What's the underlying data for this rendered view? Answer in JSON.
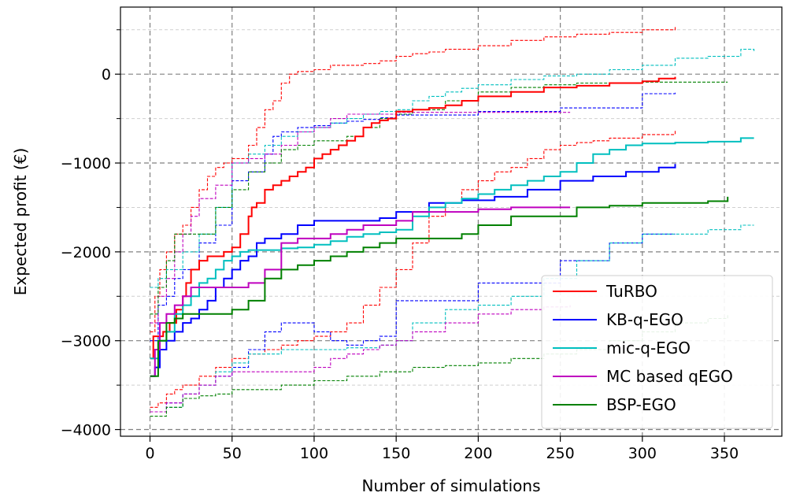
{
  "chart_data": {
    "type": "line",
    "title": "",
    "xlabel": "Number of simulations",
    "ylabel": "Expected profit (€)",
    "xlim": [
      -18,
      385
    ],
    "ylim": [
      -4075,
      755
    ],
    "xticks": [
      0,
      50,
      100,
      150,
      200,
      250,
      300,
      350
    ],
    "yticks": [
      -4000,
      -3000,
      -2000,
      -1000,
      0
    ],
    "ytick_labels": [
      "−4000",
      "−3000",
      "−2000",
      "−1000",
      "0"
    ],
    "grid": true,
    "legend_position": "lower-right",
    "series": [
      {
        "name": "TuRBO",
        "color": "#ff0000",
        "mean": {
          "x": [
            0,
            2,
            5,
            8,
            12,
            16,
            20,
            22,
            25,
            30,
            35,
            40,
            45,
            50,
            55,
            60,
            62,
            65,
            70,
            75,
            80,
            85,
            90,
            95,
            100,
            105,
            110,
            115,
            120,
            125,
            130,
            135,
            140,
            145,
            150,
            160,
            170,
            180,
            190,
            200,
            220,
            240,
            260,
            280,
            300,
            310,
            320
          ],
          "y": [
            -3200,
            -2950,
            -2950,
            -2900,
            -2800,
            -2650,
            -2500,
            -2350,
            -2200,
            -2100,
            -2050,
            -2050,
            -2000,
            -1950,
            -1800,
            -1600,
            -1500,
            -1450,
            -1300,
            -1250,
            -1200,
            -1150,
            -1100,
            -1050,
            -950,
            -900,
            -850,
            -800,
            -750,
            -700,
            -600,
            -550,
            -520,
            -500,
            -420,
            -400,
            -380,
            -350,
            -300,
            -250,
            -200,
            -150,
            -130,
            -100,
            -80,
            -50,
            -30
          ]
        },
        "upper": {
          "x": [
            0,
            3,
            6,
            10,
            15,
            20,
            25,
            30,
            35,
            40,
            45,
            50,
            55,
            60,
            65,
            70,
            75,
            80,
            85,
            90,
            100,
            110,
            120,
            130,
            140,
            150,
            160,
            170,
            180,
            200,
            220,
            240,
            260,
            280,
            300,
            320
          ],
          "y": [
            -2900,
            -2500,
            -2200,
            -2000,
            -1800,
            -1700,
            -1500,
            -1300,
            -1150,
            -1050,
            -1000,
            -950,
            -950,
            -800,
            -600,
            -400,
            -300,
            -100,
            0,
            30,
            50,
            100,
            100,
            120,
            150,
            200,
            230,
            250,
            280,
            320,
            380,
            420,
            450,
            470,
            500,
            530
          ]
        },
        "lower": {
          "x": [
            0,
            5,
            10,
            15,
            20,
            30,
            40,
            50,
            60,
            70,
            80,
            90,
            100,
            110,
            120,
            130,
            140,
            150,
            160,
            170,
            180,
            190,
            200,
            210,
            220,
            230,
            240,
            250,
            260,
            270,
            280,
            300,
            320
          ],
          "y": [
            -3750,
            -3700,
            -3600,
            -3550,
            -3500,
            -3400,
            -3300,
            -3200,
            -3150,
            -3100,
            -3050,
            -3000,
            -2950,
            -2900,
            -2800,
            -2600,
            -2400,
            -2200,
            -1900,
            -1600,
            -1450,
            -1300,
            -1200,
            -1100,
            -1050,
            -950,
            -850,
            -800,
            -770,
            -750,
            -720,
            -680,
            -620
          ]
        }
      },
      {
        "name": "KB-q-EGO",
        "color": "#0000ff",
        "mean": {
          "x": [
            0,
            3,
            6,
            10,
            15,
            20,
            25,
            30,
            35,
            40,
            45,
            50,
            55,
            60,
            65,
            70,
            80,
            90,
            100,
            120,
            140,
            150,
            170,
            190,
            210,
            230,
            250,
            270,
            290,
            310,
            320
          ],
          "y": [
            -3400,
            -3300,
            -3100,
            -3000,
            -2900,
            -2800,
            -2750,
            -2650,
            -2550,
            -2400,
            -2300,
            -2200,
            -2100,
            -2050,
            -1900,
            -1850,
            -1800,
            -1700,
            -1650,
            -1650,
            -1620,
            -1550,
            -1450,
            -1420,
            -1380,
            -1300,
            -1200,
            -1150,
            -1100,
            -1050,
            -1010
          ]
        },
        "upper": {
          "x": [
            0,
            5,
            10,
            15,
            20,
            30,
            40,
            50,
            60,
            70,
            75,
            80,
            90,
            100,
            110,
            120,
            130,
            140,
            150,
            200,
            250,
            300,
            320
          ],
          "y": [
            -3000,
            -2600,
            -2500,
            -2300,
            -2200,
            -1900,
            -1700,
            -1200,
            -1100,
            -900,
            -700,
            -650,
            -600,
            -580,
            -550,
            -530,
            -510,
            -490,
            -460,
            -420,
            -380,
            -220,
            -200
          ]
        },
        "lower": {
          "x": [
            0,
            10,
            20,
            30,
            40,
            50,
            60,
            70,
            80,
            90,
            100,
            110,
            120,
            130,
            140,
            150,
            200,
            250,
            280,
            300,
            320
          ],
          "y": [
            -3800,
            -3700,
            -3600,
            -3500,
            -3400,
            -3300,
            -3100,
            -2900,
            -2800,
            -2800,
            -2900,
            -3000,
            -3050,
            -3000,
            -2950,
            -2550,
            -2350,
            -2100,
            -1900,
            -1800,
            -1800
          ]
        }
      },
      {
        "name": "mic-q-EGO",
        "color": "#00bfbf",
        "mean": {
          "x": [
            0,
            5,
            10,
            15,
            20,
            25,
            30,
            35,
            40,
            45,
            50,
            55,
            60,
            70,
            80,
            90,
            100,
            110,
            120,
            130,
            140,
            150,
            160,
            170,
            180,
            190,
            200,
            210,
            220,
            230,
            240,
            250,
            260,
            270,
            280,
            290,
            300,
            320,
            340,
            360,
            368
          ],
          "y": [
            -3200,
            -3000,
            -2900,
            -2700,
            -2600,
            -2500,
            -2350,
            -2300,
            -2200,
            -2100,
            -2050,
            -2000,
            -1980,
            -1980,
            -1960,
            -1950,
            -1920,
            -1880,
            -1830,
            -1800,
            -1780,
            -1750,
            -1600,
            -1500,
            -1450,
            -1400,
            -1350,
            -1300,
            -1250,
            -1200,
            -1150,
            -1100,
            -1000,
            -900,
            -850,
            -800,
            -780,
            -770,
            -760,
            -720,
            -720
          ]
        },
        "upper": {
          "x": [
            0,
            5,
            10,
            20,
            30,
            40,
            50,
            60,
            70,
            80,
            90,
            100,
            110,
            120,
            130,
            140,
            150,
            160,
            170,
            180,
            190,
            200,
            220,
            240,
            260,
            280,
            300,
            320,
            340,
            360,
            368
          ],
          "y": [
            -2400,
            -2300,
            -2200,
            -2000,
            -1800,
            -1500,
            -1000,
            -900,
            -800,
            -700,
            -650,
            -600,
            -550,
            -500,
            -450,
            -420,
            -400,
            -300,
            -250,
            -200,
            -160,
            -120,
            -60,
            -20,
            0,
            50,
            100,
            180,
            200,
            280,
            260
          ]
        },
        "lower": {
          "x": [
            0,
            10,
            20,
            30,
            40,
            50,
            60,
            80,
            100,
            120,
            140,
            150,
            160,
            180,
            200,
            220,
            240,
            260,
            280,
            300,
            320,
            340,
            360,
            368
          ],
          "y": [
            -3800,
            -3750,
            -3600,
            -3500,
            -3350,
            -3250,
            -3150,
            -3100,
            -3100,
            -3080,
            -3050,
            -3000,
            -2800,
            -2650,
            -2600,
            -2500,
            -2300,
            -2100,
            -1900,
            -1800,
            -1800,
            -1750,
            -1700,
            -1700
          ]
        }
      },
      {
        "name": "MC based qEGO",
        "color": "#bf00bf",
        "mean": {
          "x": [
            0,
            3,
            6,
            10,
            15,
            20,
            25,
            30,
            40,
            50,
            60,
            70,
            80,
            90,
            100,
            110,
            120,
            130,
            140,
            150,
            160,
            180,
            200,
            220,
            240,
            256
          ],
          "y": [
            -3400,
            -3100,
            -2800,
            -2700,
            -2600,
            -2500,
            -2400,
            -2400,
            -2400,
            -2400,
            -2350,
            -2200,
            -1900,
            -1850,
            -1850,
            -1800,
            -1750,
            -1700,
            -1700,
            -1650,
            -1550,
            -1550,
            -1520,
            -1500,
            -1500,
            -1500
          ]
        },
        "upper": {
          "x": [
            0,
            5,
            10,
            15,
            20,
            25,
            30,
            40,
            50,
            60,
            70,
            80,
            90,
            100,
            110,
            120,
            130,
            140,
            150,
            200,
            256
          ],
          "y": [
            -2800,
            -2500,
            -2300,
            -2000,
            -1800,
            -1600,
            -1400,
            -1250,
            -1000,
            -950,
            -900,
            -800,
            -650,
            -600,
            -500,
            -450,
            -450,
            -450,
            -430,
            -430,
            -430
          ]
        },
        "lower": {
          "x": [
            0,
            10,
            20,
            30,
            40,
            50,
            60,
            70,
            80,
            90,
            100,
            110,
            120,
            130,
            140,
            150,
            160,
            180,
            200,
            220,
            240,
            256
          ],
          "y": [
            -3800,
            -3700,
            -3600,
            -3500,
            -3400,
            -3350,
            -3350,
            -3350,
            -3350,
            -3350,
            -3300,
            -3200,
            -3150,
            -3100,
            -3050,
            -3000,
            -2900,
            -2800,
            -2700,
            -2650,
            -2620,
            -2600
          ]
        }
      },
      {
        "name": "BSP-EGO",
        "color": "#008000",
        "mean": {
          "x": [
            0,
            5,
            10,
            15,
            20,
            30,
            40,
            50,
            60,
            70,
            80,
            90,
            100,
            110,
            120,
            130,
            140,
            150,
            170,
            190,
            200,
            220,
            240,
            260,
            280,
            300,
            320,
            340,
            352
          ],
          "y": [
            -3400,
            -3000,
            -2800,
            -2750,
            -2700,
            -2700,
            -2700,
            -2650,
            -2550,
            -2300,
            -2200,
            -2150,
            -2100,
            -2050,
            -2000,
            -1950,
            -1900,
            -1850,
            -1850,
            -1800,
            -1700,
            -1600,
            -1600,
            -1500,
            -1480,
            -1450,
            -1450,
            -1430,
            -1380
          ]
        },
        "upper": {
          "x": [
            0,
            5,
            10,
            15,
            20,
            30,
            40,
            50,
            60,
            70,
            80,
            90,
            100,
            110,
            120,
            130,
            140,
            150,
            160,
            180,
            200,
            220,
            240,
            260,
            280,
            300,
            320,
            340,
            352
          ],
          "y": [
            -2700,
            -2400,
            -2100,
            -1800,
            -1800,
            -1800,
            -1500,
            -1300,
            -1100,
            -1000,
            -850,
            -800,
            -750,
            -750,
            -700,
            -600,
            -500,
            -450,
            -400,
            -300,
            -200,
            -150,
            -120,
            -100,
            -100,
            -90,
            -90,
            -90,
            -90
          ]
        },
        "lower": {
          "x": [
            0,
            10,
            20,
            30,
            40,
            50,
            60,
            80,
            100,
            120,
            140,
            160,
            180,
            200,
            220,
            240,
            260,
            280,
            300,
            320,
            340,
            352
          ],
          "y": [
            -3850,
            -3750,
            -3650,
            -3620,
            -3600,
            -3550,
            -3550,
            -3500,
            -3450,
            -3400,
            -3350,
            -3300,
            -3280,
            -3250,
            -3200,
            -3150,
            -3100,
            -3000,
            -2900,
            -2800,
            -2750,
            -2700
          ]
        }
      }
    ]
  }
}
